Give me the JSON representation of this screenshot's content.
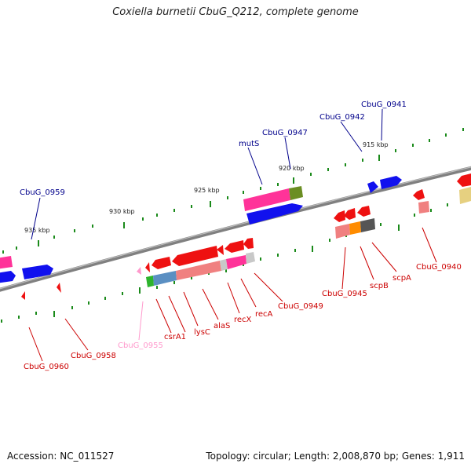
{
  "title": "Coxiella burnetii CbuG_Q212, complete genome",
  "footer": {
    "accession": "Accession: NC_011527",
    "stats": "Topology: circular; Length: 2,008,870 bp; Genes: 1,911"
  },
  "scale_labels": [
    "915 kbp",
    "920 kbp",
    "925 kbp",
    "930 kbp",
    "935 kbp"
  ],
  "colors": {
    "forward_label": "#00008b",
    "reverse_label": "#cc0000",
    "rna_label": "#ff99cc",
    "backbone": "#888888",
    "ticks": "#1a8a1a"
  },
  "gene_labels_forward": [
    "CbuG_0941",
    "CbuG_0942",
    "CbuG_0947",
    "mutS",
    "CbuG_0959"
  ],
  "gene_labels_reverse": [
    "CbuG_0940",
    "scpA",
    "scpB",
    "CbuG_0945",
    "CbuG_0949",
    "recA",
    "recX",
    "alaS",
    "lysC",
    "csrA1",
    "CbuG_0955",
    "CbuG_0958",
    "CbuG_0960"
  ]
}
